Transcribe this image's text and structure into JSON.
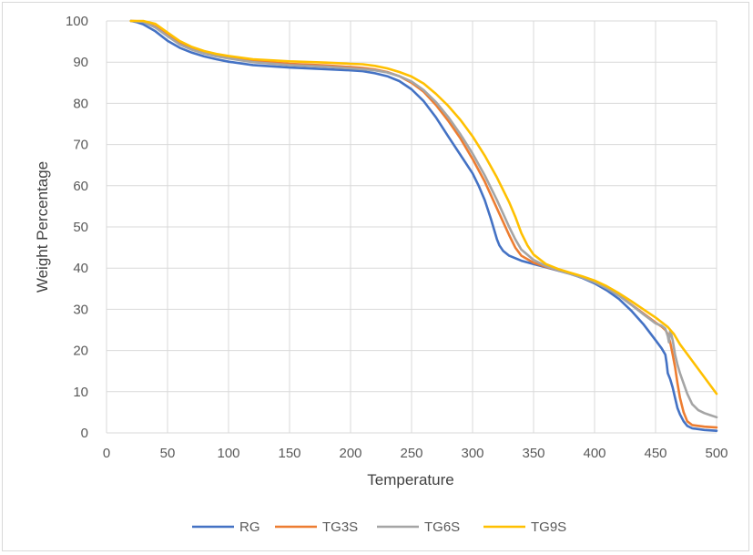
{
  "chart_data": {
    "type": "line",
    "xlabel": "Temperature",
    "ylabel": "Weight Percentage",
    "xlim": [
      0,
      500
    ],
    "ylim": [
      0,
      100
    ],
    "xticks": [
      0,
      50,
      100,
      150,
      200,
      250,
      300,
      350,
      400,
      450,
      500
    ],
    "yticks": [
      0,
      10,
      20,
      30,
      40,
      50,
      60,
      70,
      80,
      90,
      100
    ],
    "grid": true,
    "legend_position": "bottom",
    "series": [
      {
        "name": "RG",
        "color": "#4472C4",
        "points": [
          [
            20,
            100
          ],
          [
            25,
            99.7
          ],
          [
            30,
            99.2
          ],
          [
            40,
            97.5
          ],
          [
            50,
            95.2
          ],
          [
            60,
            93.5
          ],
          [
            70,
            92.3
          ],
          [
            80,
            91.4
          ],
          [
            90,
            90.7
          ],
          [
            100,
            90.1
          ],
          [
            120,
            89.3
          ],
          [
            150,
            88.7
          ],
          [
            180,
            88.3
          ],
          [
            200,
            88.0
          ],
          [
            210,
            87.8
          ],
          [
            220,
            87.3
          ],
          [
            230,
            86.6
          ],
          [
            240,
            85.4
          ],
          [
            250,
            83.4
          ],
          [
            260,
            80.5
          ],
          [
            270,
            76.6
          ],
          [
            280,
            72.0
          ],
          [
            290,
            67.5
          ],
          [
            300,
            63.0
          ],
          [
            305,
            60.0
          ],
          [
            310,
            56.5
          ],
          [
            315,
            52.0
          ],
          [
            318,
            49.0
          ],
          [
            320,
            47.0
          ],
          [
            322,
            45.5
          ],
          [
            325,
            44.2
          ],
          [
            330,
            43.0
          ],
          [
            340,
            41.8
          ],
          [
            350,
            41.0
          ],
          [
            360,
            40.2
          ],
          [
            370,
            39.4
          ],
          [
            380,
            38.6
          ],
          [
            390,
            37.6
          ],
          [
            400,
            36.3
          ],
          [
            410,
            34.6
          ],
          [
            420,
            32.5
          ],
          [
            430,
            29.7
          ],
          [
            440,
            26.4
          ],
          [
            450,
            22.5
          ],
          [
            455,
            20.5
          ],
          [
            458,
            19.0
          ],
          [
            459,
            17.0
          ],
          [
            460,
            14.5
          ],
          [
            462,
            13.0
          ],
          [
            464,
            11.0
          ],
          [
            466,
            8.5
          ],
          [
            468,
            6.0
          ],
          [
            470,
            4.5
          ],
          [
            473,
            2.8
          ],
          [
            476,
            1.7
          ],
          [
            480,
            1.1
          ],
          [
            490,
            0.7
          ],
          [
            500,
            0.5
          ]
        ]
      },
      {
        "name": "TG3S",
        "color": "#ED7D31",
        "points": [
          [
            20,
            100
          ],
          [
            30,
            99.9
          ],
          [
            40,
            98.6
          ],
          [
            50,
            96.6
          ],
          [
            60,
            94.6
          ],
          [
            70,
            93.3
          ],
          [
            80,
            92.4
          ],
          [
            90,
            91.7
          ],
          [
            100,
            91.2
          ],
          [
            120,
            90.3
          ],
          [
            150,
            89.6
          ],
          [
            180,
            89.2
          ],
          [
            200,
            88.8
          ],
          [
            210,
            88.6
          ],
          [
            220,
            88.2
          ],
          [
            230,
            87.6
          ],
          [
            240,
            86.6
          ],
          [
            250,
            85.0
          ],
          [
            260,
            82.8
          ],
          [
            270,
            79.6
          ],
          [
            280,
            75.8
          ],
          [
            290,
            71.5
          ],
          [
            300,
            66.5
          ],
          [
            310,
            61.0
          ],
          [
            320,
            54.5
          ],
          [
            330,
            48.0
          ],
          [
            335,
            45.0
          ],
          [
            340,
            43.0
          ],
          [
            350,
            41.3
          ],
          [
            360,
            40.3
          ],
          [
            370,
            39.5
          ],
          [
            380,
            38.7
          ],
          [
            390,
            37.8
          ],
          [
            400,
            36.8
          ],
          [
            410,
            35.3
          ],
          [
            420,
            33.4
          ],
          [
            430,
            31.2
          ],
          [
            440,
            29.0
          ],
          [
            450,
            26.8
          ],
          [
            455,
            25.8
          ],
          [
            458,
            25.0
          ],
          [
            460,
            24.0
          ],
          [
            462,
            22.0
          ],
          [
            464,
            19.0
          ],
          [
            466,
            16.0
          ],
          [
            468,
            12.0
          ],
          [
            470,
            8.5
          ],
          [
            473,
            5.0
          ],
          [
            476,
            2.8
          ],
          [
            480,
            1.9
          ],
          [
            490,
            1.5
          ],
          [
            500,
            1.3
          ]
        ]
      },
      {
        "name": "TG6S",
        "color": "#A5A5A5",
        "points": [
          [
            20,
            100
          ],
          [
            30,
            99.8
          ],
          [
            40,
            98.4
          ],
          [
            50,
            96.3
          ],
          [
            60,
            94.3
          ],
          [
            70,
            93.0
          ],
          [
            80,
            92.1
          ],
          [
            90,
            91.4
          ],
          [
            100,
            90.9
          ],
          [
            120,
            90.0
          ],
          [
            150,
            89.3
          ],
          [
            180,
            88.9
          ],
          [
            200,
            88.5
          ],
          [
            210,
            88.3
          ],
          [
            220,
            88.0
          ],
          [
            230,
            87.5
          ],
          [
            240,
            86.6
          ],
          [
            250,
            85.3
          ],
          [
            260,
            83.2
          ],
          [
            270,
            80.3
          ],
          [
            280,
            76.7
          ],
          [
            290,
            72.5
          ],
          [
            300,
            67.8
          ],
          [
            310,
            62.5
          ],
          [
            320,
            56.5
          ],
          [
            330,
            50.0
          ],
          [
            335,
            47.0
          ],
          [
            340,
            44.5
          ],
          [
            350,
            42.0
          ],
          [
            360,
            40.5
          ],
          [
            370,
            39.5
          ],
          [
            380,
            38.6
          ],
          [
            390,
            37.7
          ],
          [
            400,
            36.6
          ],
          [
            410,
            35.1
          ],
          [
            420,
            33.3
          ],
          [
            430,
            31.1
          ],
          [
            440,
            28.8
          ],
          [
            450,
            26.6
          ],
          [
            455,
            26.0
          ],
          [
            458,
            25.3
          ],
          [
            460,
            23.5
          ],
          [
            461,
            22.0
          ],
          [
            462,
            25.0
          ],
          [
            464,
            22.5
          ],
          [
            466,
            19.0
          ],
          [
            468,
            16.5
          ],
          [
            470,
            14.5
          ],
          [
            473,
            12.0
          ],
          [
            476,
            9.5
          ],
          [
            480,
            7.0
          ],
          [
            485,
            5.5
          ],
          [
            490,
            4.8
          ],
          [
            495,
            4.3
          ],
          [
            500,
            3.8
          ]
        ]
      },
      {
        "name": "TG9S",
        "color": "#FFC000",
        "points": [
          [
            20,
            100
          ],
          [
            30,
            100
          ],
          [
            40,
            99.3
          ],
          [
            50,
            97.2
          ],
          [
            60,
            95.1
          ],
          [
            70,
            93.7
          ],
          [
            80,
            92.7
          ],
          [
            90,
            92.0
          ],
          [
            100,
            91.5
          ],
          [
            120,
            90.7
          ],
          [
            150,
            90.2
          ],
          [
            180,
            89.9
          ],
          [
            200,
            89.6
          ],
          [
            210,
            89.5
          ],
          [
            220,
            89.1
          ],
          [
            230,
            88.5
          ],
          [
            240,
            87.6
          ],
          [
            250,
            86.5
          ],
          [
            260,
            84.8
          ],
          [
            270,
            82.3
          ],
          [
            280,
            79.4
          ],
          [
            290,
            76.0
          ],
          [
            300,
            72.0
          ],
          [
            310,
            67.3
          ],
          [
            320,
            62.0
          ],
          [
            330,
            56.0
          ],
          [
            335,
            52.5
          ],
          [
            340,
            48.5
          ],
          [
            345,
            45.5
          ],
          [
            350,
            43.3
          ],
          [
            360,
            41.0
          ],
          [
            370,
            39.8
          ],
          [
            380,
            38.9
          ],
          [
            390,
            38.0
          ],
          [
            400,
            37.0
          ],
          [
            410,
            35.6
          ],
          [
            420,
            33.9
          ],
          [
            430,
            32.0
          ],
          [
            440,
            30.0
          ],
          [
            450,
            28.0
          ],
          [
            460,
            25.7
          ],
          [
            465,
            24.0
          ],
          [
            470,
            21.5
          ],
          [
            480,
            17.5
          ],
          [
            490,
            13.5
          ],
          [
            500,
            9.5
          ]
        ]
      }
    ]
  }
}
